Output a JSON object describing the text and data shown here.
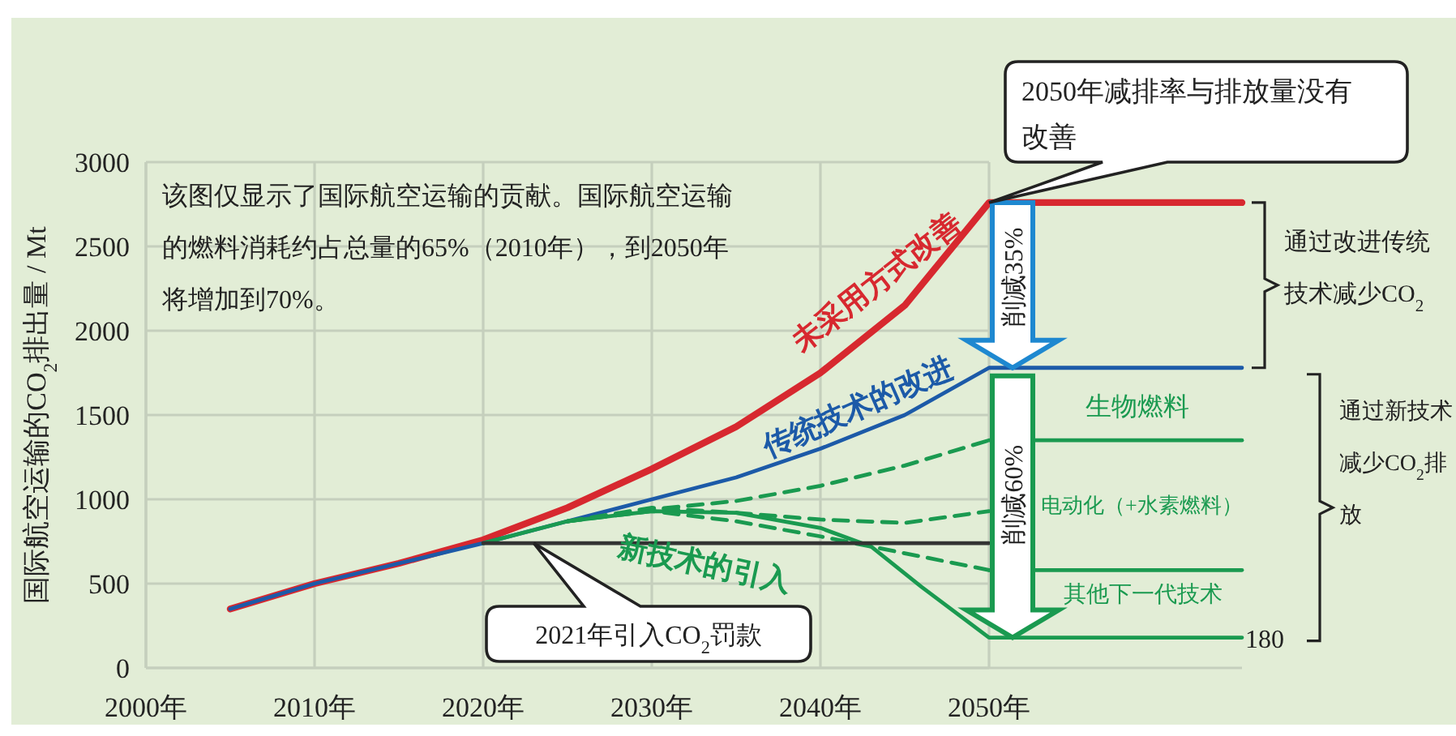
{
  "chart_data": {
    "type": "line",
    "ylabel": "国际航空运输的CO$_{2}$排出量 / Mt",
    "xlim": [
      2000,
      2065
    ],
    "ylim": [
      0,
      3000
    ],
    "xticks": [
      {
        "value": 2000,
        "label": "2000年"
      },
      {
        "value": 2010,
        "label": "2010年"
      },
      {
        "value": 2020,
        "label": "2020年"
      },
      {
        "value": 2030,
        "label": "2030年"
      },
      {
        "value": 2040,
        "label": "2040年"
      },
      {
        "value": 2050,
        "label": "2050年"
      }
    ],
    "yticks": [
      0,
      500,
      1000,
      1500,
      2000,
      2500,
      3000
    ],
    "grid": true,
    "marker": "none",
    "series": [
      {
        "name": "未采用方式改善",
        "color": "#d7282f",
        "line_style": "solid",
        "x": [
          2005,
          2010,
          2015,
          2020,
          2025,
          2030,
          2035,
          2040,
          2045,
          2050,
          2065
        ],
        "values": [
          350,
          500,
          620,
          760,
          950,
          1180,
          1430,
          1750,
          2150,
          2760,
          2760
        ]
      },
      {
        "name": "传统技术的改进",
        "color": "#1c5aa8",
        "line_style": "solid",
        "x": [
          2005,
          2010,
          2015,
          2020,
          2025,
          2030,
          2035,
          2040,
          2045,
          2050,
          2065
        ],
        "values": [
          350,
          500,
          620,
          740,
          870,
          1000,
          1130,
          1300,
          1500,
          1780,
          1780
        ]
      },
      {
        "name": "新技术的引入",
        "color": "#1a9a50",
        "line_style": "solid",
        "x": [
          2020,
          2025,
          2030,
          2035,
          2040,
          2043,
          2046,
          2050,
          2065
        ],
        "values": [
          740,
          870,
          930,
          920,
          830,
          720,
          480,
          180,
          180
        ]
      },
      {
        "color": "#1a9a50",
        "line_style": "dashed",
        "x": [
          2025,
          2030,
          2035,
          2040,
          2045,
          2050
        ],
        "values": [
          870,
          940,
          990,
          1080,
          1200,
          1350
        ]
      },
      {
        "color": "#1a9a50",
        "line_style": "dashed",
        "x": [
          2025,
          2030,
          2035,
          2040,
          2045,
          2050
        ],
        "values": [
          870,
          950,
          920,
          880,
          860,
          930
        ]
      },
      {
        "color": "#1a9a50",
        "line_style": "dashed",
        "x": [
          2025,
          2030,
          2035,
          2040,
          2045,
          2050
        ],
        "values": [
          870,
          930,
          870,
          780,
          680,
          580
        ]
      },
      {
        "color": "#333333",
        "line_style": "solid",
        "x": [
          2020,
          2050
        ],
        "values": [
          740,
          740
        ]
      },
      {
        "color": "#1a9a50",
        "line_style": "solid",
        "x": [
          2050,
          2065
        ],
        "values": [
          1350,
          1350
        ]
      },
      {
        "color": "#1a9a50",
        "line_style": "solid",
        "x": [
          2050,
          2065
        ],
        "values": [
          580,
          580
        ]
      }
    ],
    "annotations": [
      "该图仅显示了国际航空运输的贡献。国际航空运输的燃料消耗约占总量的65%（2010年），到2050年将增加到70%。",
      {
        "text": "2050年减排率与排放量没有改善",
        "x": 2050,
        "y": 2760
      },
      "2021年引入CO$_{2}$罚款",
      "削减35%",
      "削减60%",
      "生物燃料",
      "电动化（+水素燃料）",
      "其他下一代技术",
      {
        "text": "180",
        "x": 2065,
        "y": 180
      },
      "通过改进传统技术减少CO$_{2}$",
      "通过新技术减少CO$_{2}$排放"
    ]
  }
}
